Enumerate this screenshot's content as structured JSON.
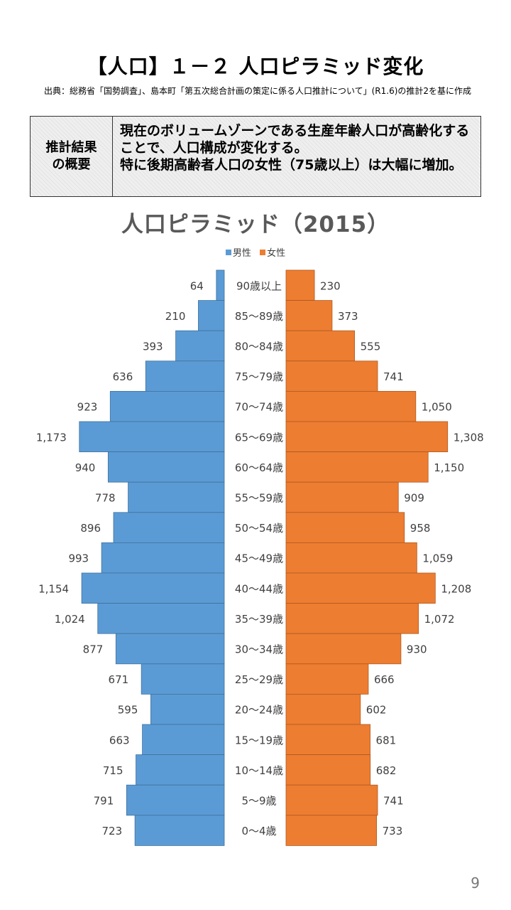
{
  "header": {
    "title": "【人口】１－２ 人口ピラミッド変化",
    "source": "出典：総務省「国勢調査」、島本町「第五次総合計画の策定に係る人口推計について」(R1.6)の推計2を基に作成"
  },
  "summary": {
    "label": "推計結果\nの概要",
    "text": "現在のボリュームゾーンである生産年齢人口が高齢化することで、人口構成が変化する。\n特に後期高齢者人口の女性（75歳以上）は大幅に増加。"
  },
  "page_number": "9",
  "colors": {
    "male": "#5b9bd5",
    "female": "#ed7d31"
  },
  "chart_data": {
    "type": "bar",
    "orientation": "horizontal-pyramid",
    "title": "人口ピラミッド（2015）",
    "legend_position": "top",
    "categories": [
      "90歳以上",
      "85～89歳",
      "80～84歳",
      "75～79歳",
      "70～74歳",
      "65～69歳",
      "60～64歳",
      "55～59歳",
      "50～54歳",
      "45～49歳",
      "40～44歳",
      "35～39歳",
      "30～34歳",
      "25～29歳",
      "20～24歳",
      "15～19歳",
      "10～14歳",
      "5～9歳",
      "0～4歳"
    ],
    "series": [
      {
        "name": "男性",
        "values": [
          64,
          210,
          393,
          636,
          923,
          1173,
          940,
          778,
          896,
          993,
          1154,
          1024,
          877,
          671,
          595,
          663,
          715,
          791,
          723
        ],
        "labels": [
          "64",
          "210",
          "393",
          "636",
          "923",
          "1,173",
          "940",
          "778",
          "896",
          "993",
          "1,154",
          "1,024",
          "877",
          "671",
          "595",
          "663",
          "715",
          "791",
          "723"
        ]
      },
      {
        "name": "女性",
        "values": [
          230,
          373,
          555,
          741,
          1050,
          1308,
          1150,
          909,
          958,
          1059,
          1208,
          1072,
          930,
          666,
          602,
          681,
          682,
          741,
          733
        ],
        "labels": [
          "230",
          "373",
          "555",
          "741",
          "1,050",
          "1,308",
          "1,150",
          "909",
          "958",
          "1,059",
          "1,208",
          "1,072",
          "930",
          "666",
          "602",
          "681",
          "682",
          "741",
          "733"
        ]
      }
    ]
  }
}
